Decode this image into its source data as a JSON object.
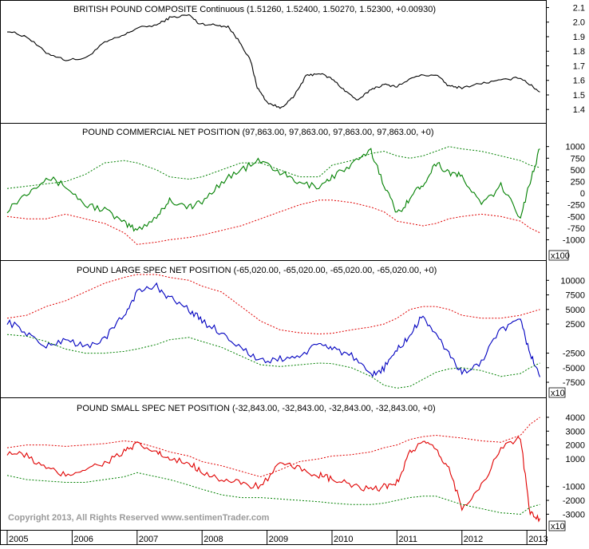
{
  "copyright": "Copyright 2013, All Rights Reserved  www.sentimenTrader.com",
  "x_axis": {
    "tick_labels": [
      "2005",
      "2006",
      "2007",
      "2008",
      "2009",
      "2010",
      "2011",
      "2012",
      "2013"
    ]
  },
  "colors": {
    "price": "#000000",
    "commercial": "#008000",
    "large_spec": "#0000c0",
    "small_spec": "#e00000",
    "upper_band_green_red_panels": "#008000",
    "lower_band_green_panel": "#e00000"
  },
  "chart_data": [
    {
      "type": "line",
      "title": "BRITISH POUND COMPOSITE Continuous (1.51260, 1.52400, 1.50270, 1.52300, +0.00930)",
      "y_ticks": [
        "2.1",
        "2.0",
        "1.9",
        "1.8",
        "1.7",
        "1.6",
        "1.5",
        "1.4"
      ],
      "ylim": [
        1.33,
        2.13
      ],
      "x": [
        2005.0,
        2005.3,
        2005.6,
        2005.9,
        2006.2,
        2006.5,
        2006.8,
        2007.0,
        2007.3,
        2007.5,
        2007.8,
        2007.95,
        2008.2,
        2008.4,
        2008.6,
        2008.75,
        2008.85,
        2009.0,
        2009.2,
        2009.4,
        2009.6,
        2009.8,
        2010.0,
        2010.2,
        2010.4,
        2010.6,
        2010.8,
        2011.0,
        2011.3,
        2011.6,
        2011.8,
        2012.0,
        2012.3,
        2012.6,
        2012.9,
        2013.05,
        2013.2
      ],
      "series": [
        {
          "values": [
            1.94,
            1.9,
            1.79,
            1.74,
            1.75,
            1.86,
            1.91,
            1.96,
            1.98,
            2.03,
            2.05,
            1.99,
            1.98,
            1.97,
            1.85,
            1.73,
            1.55,
            1.45,
            1.41,
            1.48,
            1.63,
            1.65,
            1.61,
            1.53,
            1.46,
            1.54,
            1.57,
            1.56,
            1.63,
            1.64,
            1.56,
            1.55,
            1.58,
            1.6,
            1.62,
            1.57,
            1.52
          ]
        }
      ]
    },
    {
      "type": "line",
      "title": "POUND COMMERCIAL NET POSITION (97,863.00, 97,863.00, 97,863.00, 97,863.00, +0)",
      "y_ticks": [
        "1000",
        "750",
        "500",
        "250",
        "0",
        "-250",
        "-500",
        "-750",
        "-1000"
      ],
      "ylim": [
        -1300,
        1200
      ],
      "scale_note": "x100",
      "x": [
        2005.0,
        2005.3,
        2005.6,
        2005.9,
        2006.2,
        2006.5,
        2006.8,
        2007.0,
        2007.3,
        2007.5,
        2007.8,
        2008.0,
        2008.3,
        2008.6,
        2008.9,
        2009.2,
        2009.5,
        2009.8,
        2010.0,
        2010.3,
        2010.6,
        2010.8,
        2011.0,
        2011.2,
        2011.4,
        2011.6,
        2011.8,
        2012.0,
        2012.3,
        2012.6,
        2012.9,
        2013.05,
        2013.2
      ],
      "series": [
        {
          "name": "Net",
          "values": [
            -350,
            0,
            350,
            150,
            -250,
            -350,
            -650,
            -800,
            -500,
            -150,
            -300,
            -200,
            250,
            500,
            700,
            450,
            200,
            150,
            350,
            600,
            900,
            200,
            -450,
            -100,
            200,
            650,
            450,
            350,
            -250,
            150,
            -500,
            250,
            950
          ]
        },
        {
          "name": "Upper band",
          "values": [
            100,
            150,
            200,
            250,
            400,
            650,
            700,
            650,
            500,
            350,
            300,
            350,
            500,
            650,
            650,
            500,
            350,
            350,
            600,
            700,
            850,
            900,
            800,
            750,
            800,
            900,
            1000,
            950,
            900,
            800,
            700,
            600,
            550
          ]
        },
        {
          "name": "Lower band",
          "values": [
            -500,
            -550,
            -550,
            -450,
            -550,
            -650,
            -850,
            -1100,
            -1050,
            -1000,
            -950,
            -900,
            -800,
            -700,
            -550,
            -400,
            -250,
            -150,
            -150,
            -200,
            -300,
            -400,
            -600,
            -650,
            -700,
            -650,
            -550,
            -500,
            -450,
            -500,
            -600,
            -750,
            -850
          ]
        }
      ]
    },
    {
      "type": "line",
      "title": "POUND LARGE SPEC NET POSITION (-65,020.00, -65,020.00, -65,020.00, -65,020.00, +0)",
      "y_ticks": [
        "10000",
        "7500",
        "5000",
        "2500",
        "-2500",
        "-5000",
        "-7500"
      ],
      "ylim": [
        -9000,
        11000
      ],
      "scale_note": "x10",
      "x": [
        2005.0,
        2005.3,
        2005.6,
        2005.9,
        2006.2,
        2006.5,
        2006.8,
        2007.0,
        2007.3,
        2007.5,
        2007.8,
        2008.0,
        2008.3,
        2008.6,
        2008.9,
        2009.2,
        2009.5,
        2009.8,
        2010.0,
        2010.3,
        2010.6,
        2010.8,
        2011.0,
        2011.2,
        2011.4,
        2011.6,
        2011.8,
        2012.0,
        2012.3,
        2012.6,
        2012.9,
        2013.05,
        2013.2
      ],
      "series": [
        {
          "name": "Net",
          "values": [
            3000,
            1000,
            -1500,
            0,
            -1500,
            0,
            4000,
            8000,
            9000,
            7000,
            5000,
            3000,
            1000,
            -1500,
            -4000,
            -3500,
            -3000,
            -1000,
            -1500,
            -3000,
            -6500,
            -5000,
            -2000,
            500,
            4000,
            500,
            -2500,
            -6000,
            -4000,
            1500,
            3000,
            -2500,
            -6600
          ]
        },
        {
          "name": "Upper band",
          "values": [
            3500,
            4000,
            5500,
            6500,
            8000,
            9500,
            10500,
            11000,
            11000,
            10500,
            10000,
            9000,
            8000,
            5500,
            3000,
            1500,
            1000,
            800,
            900,
            1500,
            2000,
            2500,
            3500,
            5000,
            5500,
            5500,
            5000,
            4000,
            3500,
            3500,
            4000,
            4500,
            5000
          ]
        },
        {
          "name": "Lower band",
          "values": [
            700,
            400,
            -500,
            -1800,
            -2500,
            -2500,
            -2200,
            -1800,
            -1000,
            -200,
            200,
            -500,
            -1500,
            -3000,
            -4500,
            -4800,
            -4500,
            -4200,
            -4300,
            -5000,
            -6500,
            -8000,
            -8500,
            -8200,
            -7000,
            -5800,
            -5200,
            -5000,
            -5500,
            -6500,
            -6000,
            -5000,
            -4200
          ]
        }
      ]
    },
    {
      "type": "line",
      "title": "POUND SMALL SPEC NET POSITION (-32,843.00, -32,843.00, -32,843.00, -32,843.00, +0)",
      "y_ticks": [
        "4000",
        "3000",
        "2000",
        "1000",
        "-1000",
        "-2000",
        "-3000"
      ],
      "ylim": [
        -3900,
        4400
      ],
      "scale_note": "x10",
      "x": [
        2005.0,
        2005.3,
        2005.6,
        2005.9,
        2006.2,
        2006.5,
        2006.8,
        2007.0,
        2007.3,
        2007.5,
        2007.8,
        2008.0,
        2008.3,
        2008.6,
        2008.9,
        2009.2,
        2009.5,
        2009.8,
        2010.0,
        2010.3,
        2010.6,
        2010.8,
        2011.0,
        2011.2,
        2011.4,
        2011.6,
        2011.8,
        2012.0,
        2012.3,
        2012.6,
        2012.9,
        2013.05,
        2013.2
      ],
      "series": [
        {
          "name": "Net",
          "values": [
            1500,
            1200,
            300,
            -200,
            300,
            700,
            1500,
            2000,
            1500,
            900,
            700,
            100,
            -500,
            -800,
            -1000,
            600,
            300,
            -200,
            -500,
            -900,
            -1300,
            -1000,
            -700,
            1500,
            2200,
            1600,
            300,
            -2500,
            -1000,
            1800,
            2500,
            -3000,
            -3300
          ]
        },
        {
          "name": "Upper band",
          "values": [
            1800,
            2000,
            2000,
            1900,
            2000,
            2100,
            2300,
            2200,
            1800,
            1500,
            1200,
            800,
            500,
            100,
            -300,
            200,
            800,
            1000,
            1200,
            1300,
            1500,
            1800,
            2000,
            2400,
            2600,
            2700,
            2600,
            2500,
            2300,
            2200,
            2700,
            3500,
            4000
          ]
        },
        {
          "name": "Lower band",
          "values": [
            -200,
            -500,
            -600,
            -700,
            -700,
            -500,
            -300,
            0,
            -300,
            -500,
            -900,
            -1200,
            -1600,
            -1800,
            -1800,
            -1900,
            -2000,
            -2100,
            -2200,
            -2300,
            -2300,
            -2200,
            -2000,
            -1800,
            -1700,
            -1700,
            -2000,
            -2300,
            -2600,
            -2900,
            -3000,
            -2500,
            -2300
          ]
        }
      ]
    }
  ]
}
